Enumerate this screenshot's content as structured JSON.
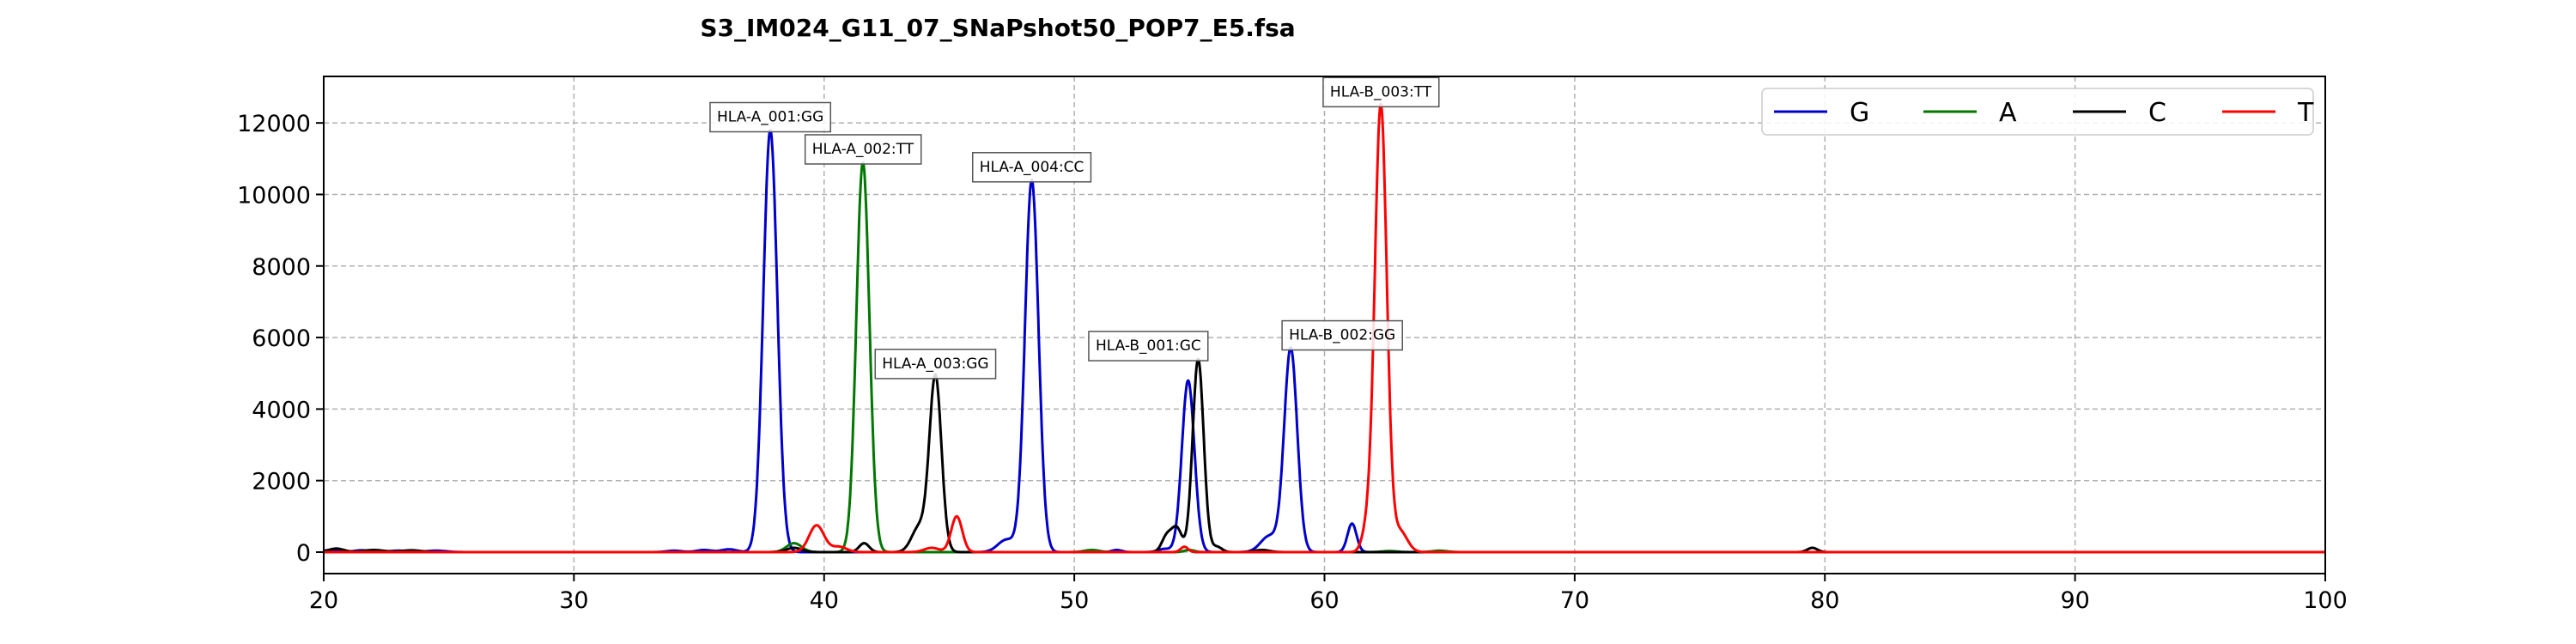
{
  "chart_data": {
    "type": "line",
    "title": "S3_IM024_G11_07_SNaPshot50_POP7_E5.fsa",
    "xlabel": "",
    "ylabel": "",
    "xlim": [
      20,
      100
    ],
    "ylim": [
      -600,
      13300
    ],
    "x_ticks": [
      20,
      30,
      40,
      50,
      60,
      70,
      80,
      90,
      100
    ],
    "y_ticks": [
      0,
      2000,
      4000,
      6000,
      8000,
      10000,
      12000
    ],
    "grid": true,
    "legend_position": "top-right",
    "series": [
      {
        "name": "G",
        "color": "#0000cc",
        "peaks": [
          [
            20.3,
            60,
            0.3
          ],
          [
            21.5,
            50,
            0.3
          ],
          [
            23,
            40,
            0.4
          ],
          [
            24.5,
            40,
            0.4
          ],
          [
            34,
            40,
            0.3
          ],
          [
            35.2,
            60,
            0.3
          ],
          [
            36.2,
            80,
            0.3
          ],
          [
            37.85,
            11800,
            0.28
          ],
          [
            47.3,
            350,
            0.35
          ],
          [
            48.3,
            10400,
            0.27
          ],
          [
            51.7,
            60,
            0.2
          ],
          [
            53.6,
            90,
            0.25
          ],
          [
            54.55,
            4800,
            0.25
          ],
          [
            57.8,
            450,
            0.35
          ],
          [
            58.65,
            5700,
            0.26
          ],
          [
            61.1,
            800,
            0.18
          ]
        ]
      },
      {
        "name": "A",
        "color": "#007700",
        "peaks": [
          [
            38.8,
            250,
            0.3
          ],
          [
            41.55,
            10900,
            0.26
          ],
          [
            50.7,
            60,
            0.3
          ],
          [
            54.6,
            60,
            0.2
          ],
          [
            62.6,
            30,
            0.3
          ],
          [
            64.6,
            40,
            0.3
          ]
        ]
      },
      {
        "name": "C",
        "color": "#000000",
        "peaks": [
          [
            20.5,
            100,
            0.3
          ],
          [
            22,
            60,
            0.4
          ],
          [
            23.5,
            50,
            0.4
          ],
          [
            38.8,
            120,
            0.3
          ],
          [
            41.6,
            250,
            0.2
          ],
          [
            43.8,
            700,
            0.3
          ],
          [
            44.45,
            4900,
            0.24
          ],
          [
            53.7,
            450,
            0.2
          ],
          [
            54.1,
            650,
            0.2
          ],
          [
            54.95,
            5400,
            0.22
          ],
          [
            55.7,
            150,
            0.2
          ],
          [
            57.5,
            60,
            0.3
          ],
          [
            79.5,
            120,
            0.2
          ]
        ]
      },
      {
        "name": "T",
        "color": "#ff0000",
        "peaks": [
          [
            39.7,
            750,
            0.3
          ],
          [
            40.6,
            150,
            0.3
          ],
          [
            44.3,
            120,
            0.3
          ],
          [
            45.3,
            1000,
            0.22
          ],
          [
            54.4,
            150,
            0.15
          ],
          [
            61.7,
            600,
            0.2
          ],
          [
            62.25,
            12500,
            0.24
          ],
          [
            63,
            600,
            0.3
          ]
        ]
      }
    ],
    "annotations": [
      {
        "label": "HLA-A_001:GG",
        "x": 37.85,
        "y": 11800
      },
      {
        "label": "HLA-A_002:TT",
        "x": 41.55,
        "y": 10900
      },
      {
        "label": "HLA-A_003:GG",
        "x": 44.45,
        "y": 4900
      },
      {
        "label": "HLA-A_004:CC",
        "x": 48.3,
        "y": 10400
      },
      {
        "label": "HLA-B_001:GC",
        "x": 54.95,
        "y": 5400
      },
      {
        "label": "HLA-B_002:GG",
        "x": 58.65,
        "y": 5700
      },
      {
        "label": "HLA-B_003:TT",
        "x": 62.25,
        "y": 12500
      }
    ]
  }
}
